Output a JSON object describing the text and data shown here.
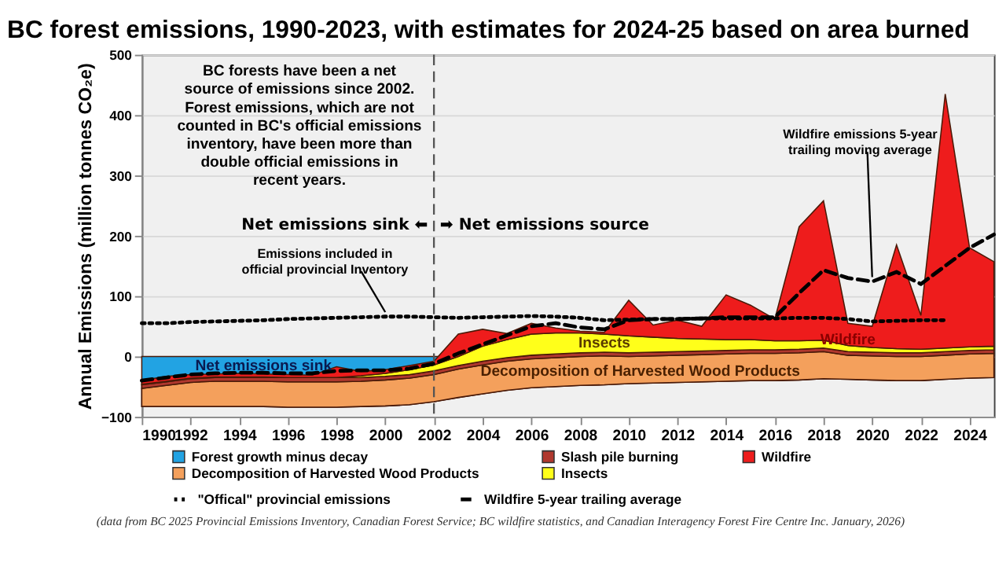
{
  "chart_data": {
    "type": "area",
    "stacked": true,
    "title": "BC forest emissions, 1990-2023, with estimates for 2024-25 based on area burned",
    "ylabel": "Annual Emissions (million tonnes CO₂e)",
    "x": [
      1990,
      1991,
      1992,
      1993,
      1994,
      1995,
      1996,
      1997,
      1998,
      1999,
      2000,
      2001,
      2002,
      2003,
      2004,
      2005,
      2006,
      2007,
      2008,
      2009,
      2010,
      2011,
      2012,
      2013,
      2014,
      2015,
      2016,
      2017,
      2018,
      2019,
      2020,
      2021,
      2022,
      2023,
      2024,
      2025
    ],
    "xlim": [
      1990,
      2025
    ],
    "xticks": [
      1990,
      1992,
      1994,
      1996,
      1998,
      2000,
      2002,
      2004,
      2006,
      2008,
      2010,
      2012,
      2014,
      2016,
      2018,
      2020,
      2022,
      2024
    ],
    "ylim": [
      -100,
      500
    ],
    "yticks": [
      -100,
      0,
      100,
      200,
      300,
      400,
      500
    ],
    "grid": "y",
    "legend": "bottom",
    "series": [
      {
        "name": "Forest growth minus decay",
        "color": "#22a3e3",
        "values": [
          -83,
          -83,
          -83,
          -83,
          -83,
          -83,
          -84,
          -84,
          -84,
          -83,
          -82,
          -80,
          -75,
          -68,
          -62,
          -56,
          -52,
          -50,
          -48,
          -47,
          -45,
          -44,
          -43,
          -42,
          -41,
          -40,
          -40,
          -39,
          -37,
          -38,
          -39,
          -40,
          -40,
          -38,
          -36,
          -35
        ]
      },
      {
        "name": "Decomposition of Harvested Wood Products",
        "color": "#f4a05c",
        "values": [
          30,
          35,
          40,
          42,
          42,
          42,
          42,
          42,
          42,
          42,
          43,
          44,
          45,
          47,
          48,
          48,
          48,
          48,
          48,
          48,
          45,
          45,
          45,
          45,
          45,
          45,
          45,
          45,
          45,
          40,
          40,
          40,
          40,
          40,
          40,
          40
        ]
      },
      {
        "name": "Slash pile burning",
        "color": "#b0382e",
        "values": [
          6,
          6,
          6,
          6,
          6,
          6,
          7,
          7,
          7,
          6,
          6,
          6,
          6,
          6,
          6,
          6,
          6,
          6,
          6,
          6,
          6,
          6,
          6,
          6,
          6,
          6,
          6,
          6,
          6,
          6,
          6,
          6,
          6,
          6,
          6,
          6
        ]
      },
      {
        "name": "Insects",
        "color": "#ffff1a",
        "values": [
          1,
          1,
          1,
          1,
          1,
          1,
          0,
          0,
          0,
          3,
          5,
          8,
          10,
          15,
          25,
          30,
          35,
          35,
          33,
          30,
          28,
          25,
          22,
          20,
          18,
          17,
          15,
          14,
          13,
          10,
          8,
          7,
          6,
          6,
          6,
          6
        ]
      },
      {
        "name": "Wildfire",
        "color": "#ee1c1c",
        "values": [
          6,
          8,
          6,
          5,
          6,
          5,
          5,
          4,
          18,
          7,
          6,
          7,
          6,
          37,
          28,
          10,
          18,
          8,
          3,
          3,
          59,
          20,
          30,
          21,
          74,
          57,
          36,
          189,
          231,
          37,
          35,
          172,
          56,
          421,
          164,
          140
        ]
      },
      {
        "name": "\"Offical\" provincial emissions",
        "type": "line",
        "line_style": "dotted",
        "color": "#000000",
        "x": [
          1990,
          1991,
          1992,
          1993,
          1994,
          1995,
          1996,
          1997,
          1998,
          1999,
          2000,
          2001,
          2002,
          2003,
          2004,
          2005,
          2006,
          2007,
          2008,
          2009,
          2010,
          2011,
          2012,
          2013,
          2014,
          2015,
          2016,
          2017,
          2018,
          2019,
          2020,
          2021,
          2022,
          2023
        ],
        "values": [
          55,
          55,
          57,
          58,
          59,
          60,
          62,
          63,
          64,
          65,
          66,
          66,
          65,
          64,
          65,
          66,
          67,
          66,
          64,
          60,
          61,
          62,
          62,
          63,
          63,
          63,
          63,
          64,
          64,
          62,
          58,
          59,
          60,
          60
        ]
      },
      {
        "name": "Wildfire 5-year trailing average",
        "type": "line",
        "line_style": "dashed",
        "color": "#000000",
        "values": [
          -40,
          -35,
          -30,
          -28,
          -27,
          -27,
          -28,
          -28,
          -24,
          -23,
          -23,
          -20,
          -12,
          5,
          20,
          35,
          50,
          55,
          48,
          45,
          60,
          62,
          62,
          63,
          65,
          65,
          65,
          105,
          143,
          130,
          124,
          140,
          120,
          150,
          180,
          202
        ]
      }
    ],
    "ref_lines": [
      {
        "axis": "x",
        "value": 2002,
        "line_style": "dashed",
        "color": "#555555"
      }
    ],
    "annotations": [
      "BC forests have been a net\nsource of emissions since 2002.\nForest emissions, which are not\ncounted in BC's official emissions\ninventory, have been more than\ndouble official emissions in\nrecent years.",
      "Net emissions sink ⬅",
      "➡ Net emissions source",
      {
        "text": "Emissions included in\nofficial provincial Inventory",
        "x": 2000,
        "y": 66
      },
      {
        "text": "Wildfire emissions 5-year\ntrailing moving average",
        "x": 2020,
        "y": 124
      },
      {
        "text": "Net emissions sink",
        "x": 1995,
        "y": -15
      },
      {
        "text": "Insects",
        "x": 2009,
        "y": 22
      },
      {
        "text": "Wildfire",
        "x": 2019,
        "y": 28
      },
      "Decomposition of Harvested Wood Products",
      "(data from BC 2025 Provincial Emissions Inventory, Canadian Forest Service; BC wildfire statistics, and Canadian Interagency Forest Fire Centre Inc. January, 2026)"
    ]
  }
}
